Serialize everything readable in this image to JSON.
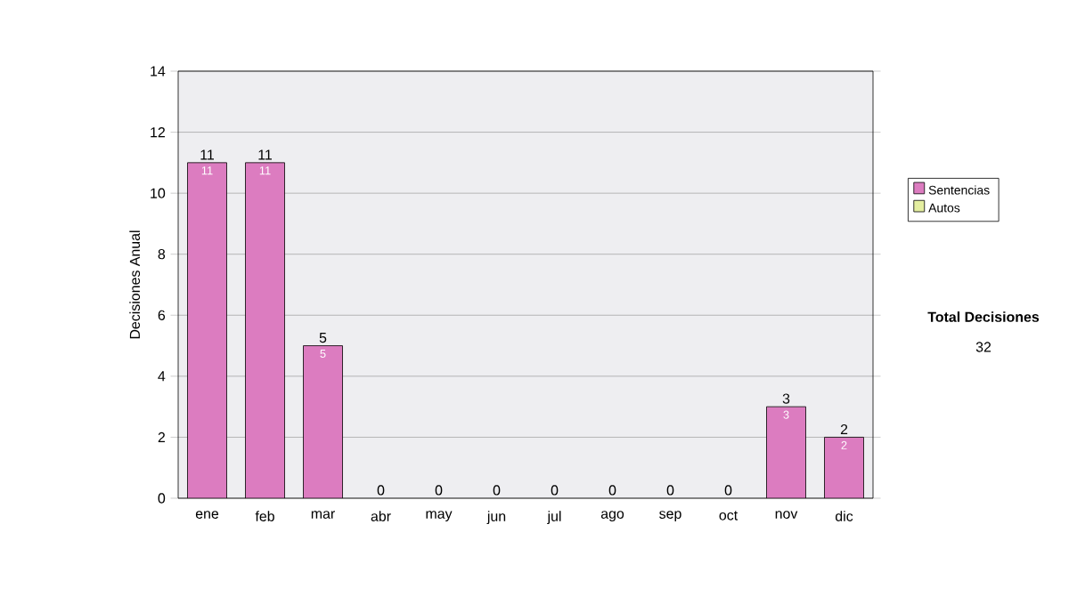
{
  "chart_data": {
    "type": "bar",
    "stacked": true,
    "ylabel": "Decisiones Anual",
    "categories": [
      "ene",
      "feb",
      "mar",
      "abr",
      "may",
      "jun",
      "jul",
      "ago",
      "sep",
      "oct",
      "nov",
      "dic"
    ],
    "series": [
      {
        "name": "Sentencias",
        "color": "#dc7cc0",
        "values": [
          11,
          11,
          5,
          0,
          0,
          0,
          0,
          0,
          0,
          0,
          3,
          2
        ],
        "value_labels": [
          "11",
          "11",
          "5",
          null,
          null,
          null,
          null,
          null,
          null,
          null,
          "3",
          "2"
        ]
      },
      {
        "name": "Autos",
        "color": "#e4eea0",
        "values": [
          0,
          0,
          0,
          0,
          0,
          0,
          0,
          0,
          0,
          0,
          0,
          0
        ]
      }
    ],
    "totals": [
      "11",
      "11",
      "5",
      "0",
      "0",
      "0",
      "0",
      "0",
      "0",
      "0",
      "3",
      "2"
    ],
    "ylim": [
      0,
      14
    ],
    "yticks": [
      0,
      2,
      4,
      6,
      8,
      10,
      12,
      14
    ],
    "grid": "y",
    "legend": "right",
    "annotations": [
      "Total Decisiones",
      "32"
    ]
  }
}
